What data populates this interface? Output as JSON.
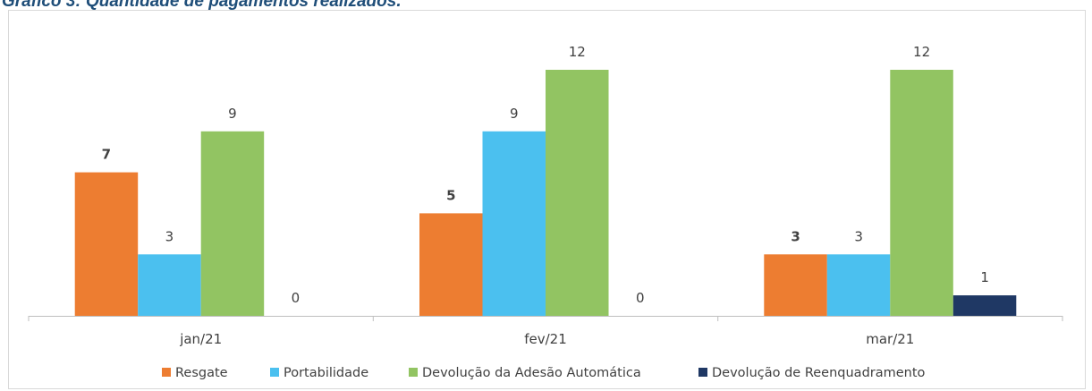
{
  "title": "Gráfico 3: Quantidade de pagamentos realizados.",
  "chart_data": {
    "type": "bar",
    "categories": [
      "jan/21",
      "fev/21",
      "mar/21"
    ],
    "series": [
      {
        "name": "Resgate",
        "values": [
          7,
          5,
          3
        ],
        "color": "#ed7d31",
        "label_bold": true
      },
      {
        "name": "Portabilidade",
        "values": [
          3,
          9,
          3
        ],
        "color": "#4bc0ef",
        "label_bold": false
      },
      {
        "name": "Devolução da Adesão Automática",
        "values": [
          9,
          12,
          12
        ],
        "color": "#92c462",
        "label_bold": false
      },
      {
        "name": "Devolução de Reenquadramento",
        "values": [
          0,
          0,
          1
        ],
        "color": "#1f3864",
        "label_bold": false
      }
    ],
    "xlabel": "",
    "ylabel": "",
    "ylim": [
      0,
      12
    ],
    "grid": false,
    "legend": "bottom",
    "axis_color": "#bfbfbf",
    "label_color": "#404040"
  }
}
